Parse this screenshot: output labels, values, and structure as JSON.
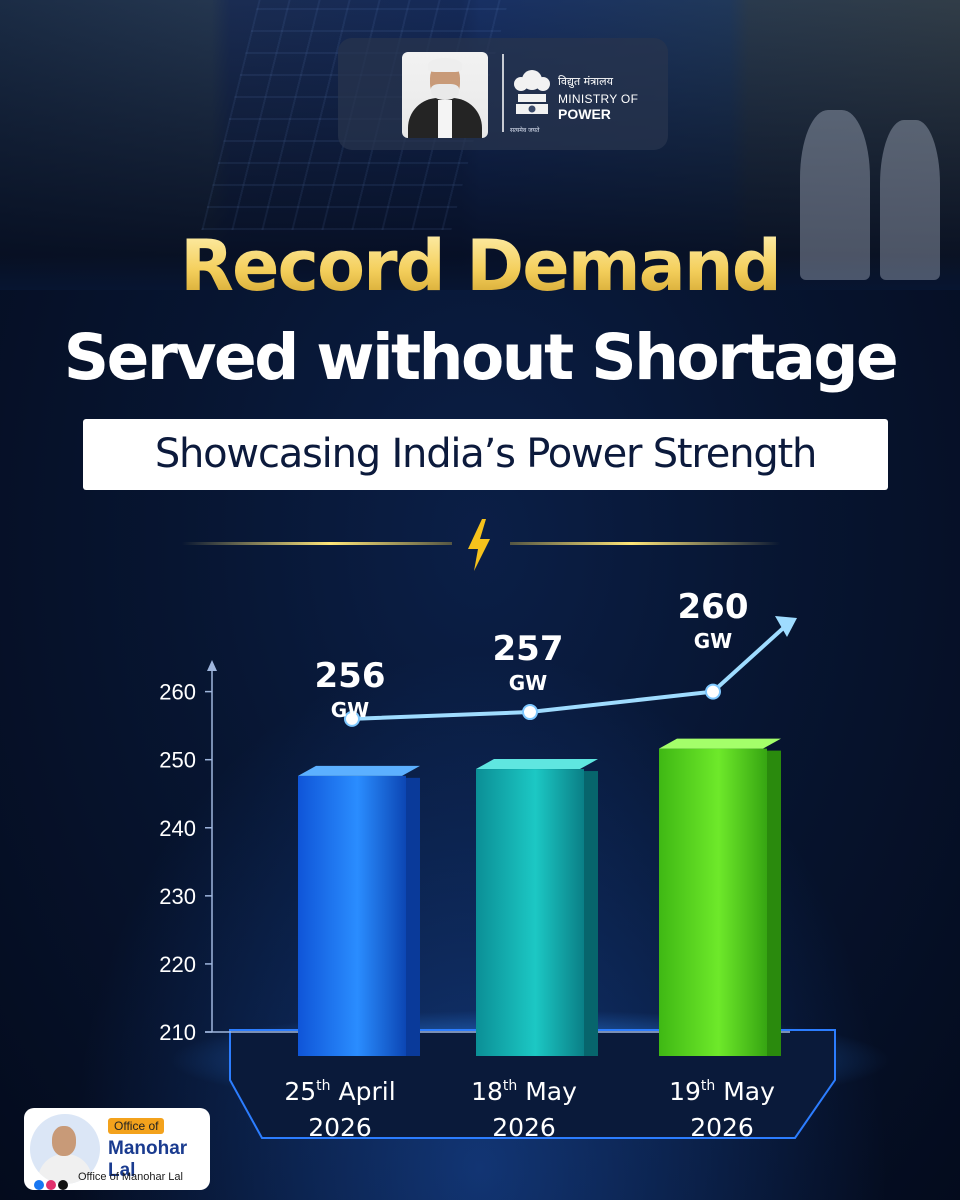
{
  "header": {
    "ministry_hindi": "विद्युत मंत्रालय",
    "ministry_line1": "MINISTRY OF",
    "ministry_line2": "POWER",
    "emblem_motto": "सत्यमेव जयते"
  },
  "title": {
    "line1": "Record Demand",
    "line2": "Served without Shortage",
    "subtitle": "Showcasing India’s Power Strength"
  },
  "colors": {
    "title_gold": "#f4cf5c",
    "bar_blue": "#1e7bff",
    "bar_teal": "#17b6b6",
    "bar_green": "#5fe01f",
    "trend_line": "#9fdcff"
  },
  "chart_data": {
    "type": "bar",
    "categories": [
      {
        "sup": "th",
        "line1_pre": "25",
        "line1_post": " April",
        "line2": "2026"
      },
      {
        "sup": "th",
        "line1_pre": "18",
        "line1_post": " May",
        "line2": "2026"
      },
      {
        "sup": "th",
        "line1_pre": "19",
        "line1_post": " May",
        "line2": "2026"
      }
    ],
    "values": [
      256,
      257,
      260
    ],
    "value_labels": [
      "256",
      "257",
      "260"
    ],
    "unit": "GW",
    "yticks": [
      210,
      220,
      230,
      240,
      250,
      260
    ],
    "ylim": [
      210,
      262
    ],
    "trend_line": true,
    "grid": false
  },
  "badge": {
    "label_top": "Office of",
    "name": "Manohar Lal",
    "handle": "Office of Manohar Lal",
    "icons": [
      "facebook-icon",
      "instagram-icon",
      "x-icon"
    ]
  }
}
